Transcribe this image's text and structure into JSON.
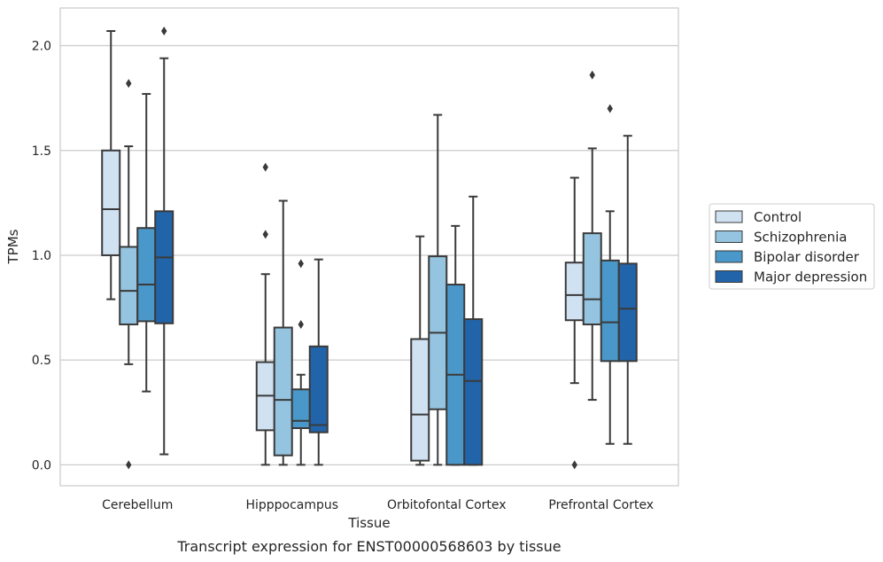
{
  "caption": "Transcript expression for ENST00000568603 by tissue",
  "chart_data": {
    "type": "boxplot",
    "xlabel": "Tissue",
    "ylabel": "TPMs",
    "ylim": [
      -0.1,
      2.18
    ],
    "yticks": [
      0.0,
      0.5,
      1.0,
      1.5,
      2.0
    ],
    "ytick_labels": [
      "0.0",
      "0.5",
      "1.0",
      "1.5",
      "2.0"
    ],
    "grid": "horizontal",
    "legend_position": "right",
    "categories": [
      "Cerebellum",
      "Hipppocampus",
      "Orbitofontal Cortex",
      "Prefrontal Cortex"
    ],
    "series": [
      {
        "name": "Control",
        "color": "#d0e1f2",
        "boxes": [
          {
            "whislo": 0.79,
            "q1": 1.0,
            "med": 1.22,
            "q3": 1.5,
            "whishi": 2.07,
            "fliers": []
          },
          {
            "whislo": 0.0,
            "q1": 0.165,
            "med": 0.33,
            "q3": 0.49,
            "whishi": 0.91,
            "fliers": [
              1.1,
              1.42
            ]
          },
          {
            "whislo": 0.0,
            "q1": 0.02,
            "med": 0.24,
            "q3": 0.6,
            "whishi": 1.09,
            "fliers": []
          },
          {
            "whislo": 0.39,
            "q1": 0.69,
            "med": 0.81,
            "q3": 0.965,
            "whishi": 1.37,
            "fliers": [
              0.0
            ]
          }
        ]
      },
      {
        "name": "Schizophrenia",
        "color": "#94c4df",
        "boxes": [
          {
            "whislo": 0.48,
            "q1": 0.67,
            "med": 0.83,
            "q3": 1.04,
            "whishi": 1.52,
            "fliers": [
              0.0,
              1.82
            ]
          },
          {
            "whislo": 0.0,
            "q1": 0.045,
            "med": 0.31,
            "q3": 0.655,
            "whishi": 1.26,
            "fliers": []
          },
          {
            "whislo": 0.0,
            "q1": 0.265,
            "med": 0.63,
            "q3": 0.995,
            "whishi": 1.67,
            "fliers": []
          },
          {
            "whislo": 0.31,
            "q1": 0.67,
            "med": 0.79,
            "q3": 1.105,
            "whishi": 1.51,
            "fliers": [
              1.86
            ]
          }
        ]
      },
      {
        "name": "Bipolar disorder",
        "color": "#4a98c9",
        "boxes": [
          {
            "whislo": 0.35,
            "q1": 0.685,
            "med": 0.86,
            "q3": 1.13,
            "whishi": 1.77,
            "fliers": []
          },
          {
            "whislo": 0.0,
            "q1": 0.175,
            "med": 0.21,
            "q3": 0.36,
            "whishi": 0.43,
            "fliers": [
              0.67,
              0.96
            ]
          },
          {
            "whislo": 0.0,
            "q1": 0.0,
            "med": 0.43,
            "q3": 0.86,
            "whishi": 1.14,
            "fliers": []
          },
          {
            "whislo": 0.1,
            "q1": 0.495,
            "med": 0.68,
            "q3": 0.975,
            "whishi": 1.21,
            "fliers": [
              1.7
            ]
          }
        ]
      },
      {
        "name": "Major depression",
        "color": "#2264aa",
        "boxes": [
          {
            "whislo": 0.05,
            "q1": 0.675,
            "med": 0.99,
            "q3": 1.21,
            "whishi": 1.94,
            "fliers": [
              2.07
            ]
          },
          {
            "whislo": 0.0,
            "q1": 0.155,
            "med": 0.19,
            "q3": 0.565,
            "whishi": 0.98,
            "fliers": []
          },
          {
            "whislo": 0.0,
            "q1": 0.0,
            "med": 0.4,
            "q3": 0.695,
            "whishi": 1.28,
            "fliers": []
          },
          {
            "whislo": 0.1,
            "q1": 0.495,
            "med": 0.745,
            "q3": 0.96,
            "whishi": 1.57,
            "fliers": []
          }
        ]
      }
    ]
  }
}
